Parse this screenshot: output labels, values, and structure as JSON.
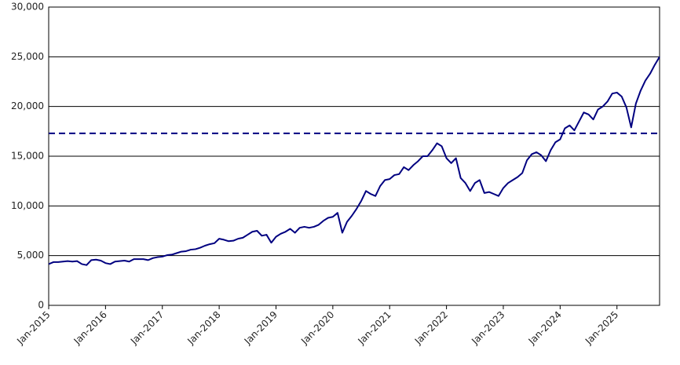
{
  "chart_data": {
    "type": "line",
    "x": [
      "2015-01",
      "2015-02",
      "2015-03",
      "2015-04",
      "2015-05",
      "2015-06",
      "2015-07",
      "2015-08",
      "2015-09",
      "2015-10",
      "2015-11",
      "2015-12",
      "2016-01",
      "2016-02",
      "2016-03",
      "2016-04",
      "2016-05",
      "2016-06",
      "2016-07",
      "2016-08",
      "2016-09",
      "2016-10",
      "2016-11",
      "2016-12",
      "2017-01",
      "2017-02",
      "2017-03",
      "2017-04",
      "2017-05",
      "2017-06",
      "2017-07",
      "2017-08",
      "2017-09",
      "2017-10",
      "2017-11",
      "2017-12",
      "2018-01",
      "2018-02",
      "2018-03",
      "2018-04",
      "2018-05",
      "2018-06",
      "2018-07",
      "2018-08",
      "2018-09",
      "2018-10",
      "2018-11",
      "2018-12",
      "2019-01",
      "2019-02",
      "2019-03",
      "2019-04",
      "2019-05",
      "2019-06",
      "2019-07",
      "2019-08",
      "2019-09",
      "2019-10",
      "2019-11",
      "2019-12",
      "2020-01",
      "2020-02",
      "2020-03",
      "2020-04",
      "2020-05",
      "2020-06",
      "2020-07",
      "2020-08",
      "2020-09",
      "2020-10",
      "2020-11",
      "2020-12",
      "2021-01",
      "2021-02",
      "2021-03",
      "2021-04",
      "2021-05",
      "2021-06",
      "2021-07",
      "2021-08",
      "2021-09",
      "2021-10",
      "2021-11",
      "2021-12",
      "2022-01",
      "2022-02",
      "2022-03",
      "2022-04",
      "2022-05",
      "2022-06",
      "2022-07",
      "2022-08",
      "2022-09",
      "2022-10",
      "2022-11",
      "2022-12",
      "2023-01",
      "2023-02",
      "2023-03",
      "2023-04",
      "2023-05",
      "2023-06",
      "2023-07",
      "2023-08",
      "2023-09",
      "2023-10",
      "2023-11",
      "2023-12",
      "2024-01",
      "2024-02",
      "2024-03",
      "2024-04",
      "2024-05",
      "2024-06",
      "2024-07",
      "2024-08",
      "2024-09",
      "2024-10",
      "2024-11",
      "2024-12",
      "2025-01",
      "2025-02",
      "2025-03",
      "2025-04",
      "2025-05",
      "2025-06",
      "2025-07",
      "2025-08",
      "2025-09",
      "2025-10"
    ],
    "series": [
      {
        "color": "#000080",
        "values": [
          4150,
          4350,
          4350,
          4400,
          4450,
          4400,
          4450,
          4150,
          4050,
          4550,
          4600,
          4500,
          4250,
          4150,
          4400,
          4450,
          4500,
          4400,
          4650,
          4650,
          4650,
          4550,
          4750,
          4850,
          4900,
          5050,
          5100,
          5250,
          5400,
          5450,
          5600,
          5650,
          5800,
          6000,
          6150,
          6250,
          6700,
          6600,
          6450,
          6500,
          6700,
          6800,
          7100,
          7400,
          7500,
          7000,
          7100,
          6300,
          6900,
          7200,
          7400,
          7700,
          7300,
          7800,
          7900,
          7800,
          7900,
          8100,
          8500,
          8800,
          8900,
          9300,
          7300,
          8400,
          9000,
          9700,
          10500,
          11500,
          11200,
          11000,
          12000,
          12600,
          12700,
          13100,
          13200,
          13900,
          13600,
          14100,
          14500,
          15000,
          15000,
          15600,
          16300,
          16000,
          14800,
          14300,
          14800,
          12800,
          12300,
          11500,
          12300,
          12600,
          11300,
          11400,
          11200,
          11000,
          11800,
          12300,
          12600,
          12900,
          13300,
          14600,
          15200,
          15400,
          15100,
          14500,
          15600,
          16400,
          16700,
          17800,
          18100,
          17600,
          18500,
          19400,
          19200,
          18700,
          19700,
          20000,
          20500,
          21300,
          21400,
          21000,
          19900,
          17900,
          20300,
          21600,
          22600,
          23300,
          24200,
          25000
        ]
      }
    ],
    "xlim": [
      "2015-01",
      "2025-10"
    ],
    "xticks": [
      {
        "value": "2015-01",
        "label": "Jan-2015"
      },
      {
        "value": "2016-01",
        "label": "Jan-2016"
      },
      {
        "value": "2017-01",
        "label": "Jan-2017"
      },
      {
        "value": "2018-01",
        "label": "Jan-2018"
      },
      {
        "value": "2019-01",
        "label": "Jan-2019"
      },
      {
        "value": "2020-01",
        "label": "Jan-2020"
      },
      {
        "value": "2021-01",
        "label": "Jan-2021"
      },
      {
        "value": "2022-01",
        "label": "Jan-2022"
      },
      {
        "value": "2023-01",
        "label": "Jan-2023"
      },
      {
        "value": "2024-01",
        "label": "Jan-2024"
      },
      {
        "value": "2025-01",
        "label": "Jan-2025"
      }
    ],
    "ylim": [
      0,
      30000
    ],
    "yticks": [
      0,
      {
        "value": 5000,
        "label": "5,000"
      },
      {
        "value": 10000,
        "label": "10,000"
      },
      {
        "value": 15000,
        "label": "15,000"
      },
      {
        "value": 20000,
        "label": "20,000"
      },
      {
        "value": 25000,
        "label": "25,000"
      },
      {
        "value": 30000,
        "label": "30,000"
      }
    ],
    "grid": true,
    "reference_line": {
      "value": 17300,
      "color": "#000080"
    }
  }
}
